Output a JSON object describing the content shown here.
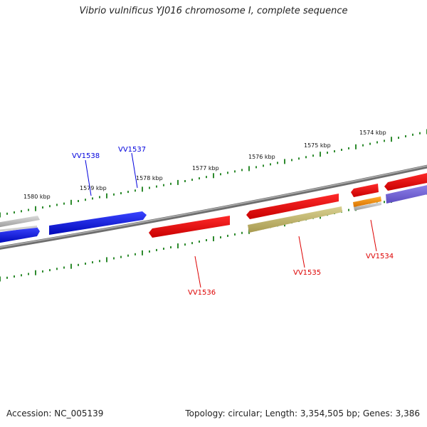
{
  "title": "Vibrio vulnificus YJ016 chromosome I, complete sequence",
  "footer": {
    "accession": "Accession: NC_005139",
    "summary": "Topology: circular; Length: 3,354,505 bp; Genes: 3,386"
  },
  "ruler": {
    "labels": [
      {
        "text": "1580 kbp",
        "color": "#111111"
      },
      {
        "text": "1579 kbp",
        "color": "#111111"
      },
      {
        "text": "1578 kbp",
        "color": "#111111"
      },
      {
        "text": "1577 kbp",
        "color": "#111111"
      },
      {
        "text": "1576 kbp",
        "color": "#111111"
      },
      {
        "text": "1575 kbp",
        "color": "#111111"
      },
      {
        "text": "1574 kbp",
        "color": "#111111"
      }
    ],
    "tick_color": "#2e8b2e"
  },
  "genes": [
    {
      "label": "VV1538",
      "color": "#0000dd",
      "strand": "+"
    },
    {
      "label": "VV1537",
      "color": "#0000dd",
      "strand": "+"
    },
    {
      "label": "VV1536",
      "color": "#dd0000",
      "strand": "-"
    },
    {
      "label": "VV1535",
      "color": "#dd0000",
      "strand": "-"
    },
    {
      "label": "VV1534",
      "color": "#dd0000",
      "strand": "-"
    }
  ],
  "colors": {
    "backbone": "#888888",
    "blue_gene": "#0a14e0",
    "red_gene": "#ee0000",
    "gray_feature": "#bdbdbd",
    "olive_feature": "#c8c080",
    "orange_feature": "#f08c00",
    "purple_feature": "#7a6ad6"
  }
}
